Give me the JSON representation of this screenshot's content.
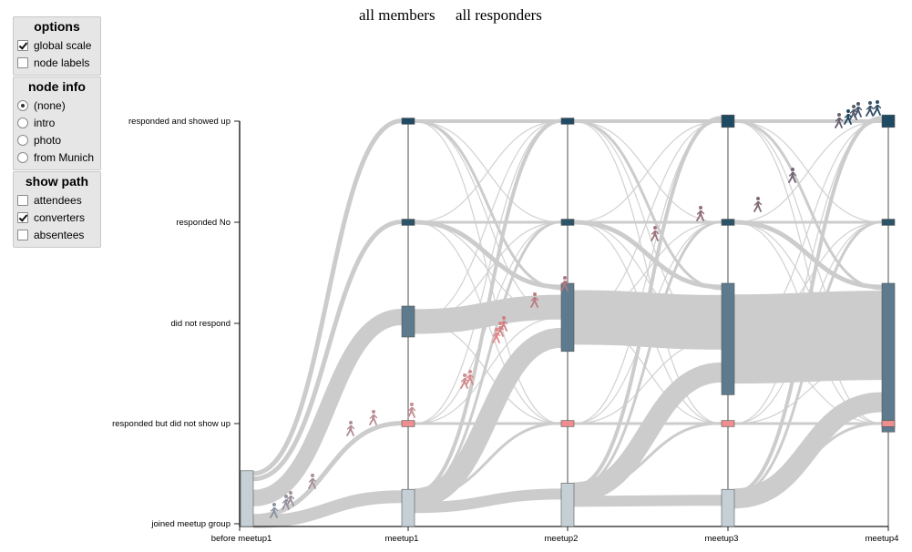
{
  "panels": {
    "options": {
      "title": "options",
      "items": [
        {
          "label": "global scale",
          "checked": true
        },
        {
          "label": "node labels",
          "checked": false
        }
      ]
    },
    "node_info": {
      "title": "node info",
      "items": [
        {
          "label": "(none)",
          "selected": true
        },
        {
          "label": "intro",
          "selected": false
        },
        {
          "label": "photo",
          "selected": false
        },
        {
          "label": "from Munich",
          "selected": false
        }
      ]
    },
    "show_path": {
      "title": "show path",
      "items": [
        {
          "label": "attendees",
          "checked": false
        },
        {
          "label": "converters",
          "checked": true
        },
        {
          "label": "absentees",
          "checked": false
        }
      ]
    }
  },
  "header": {
    "link_all_members": "all members",
    "link_all_responders": "all responders"
  },
  "colors": {
    "showed_up": "#1f4a63",
    "responded_no": "#2c5468",
    "did_not_respond": "#5d7a8e",
    "no_show": "#ee8e8e",
    "joined": "#c5d0d6",
    "link": "#cccccc",
    "walker_start": "#8a93a0",
    "walker_mid": "#e48a8a",
    "walker_end": "#1f4a63"
  },
  "chart_data": {
    "type": "sankey",
    "stages": [
      "before meetup1",
      "meetup1",
      "meetup2",
      "meetup3",
      "meetup4"
    ],
    "states": [
      "responded and showed up",
      "responded No",
      "did not respond",
      "responded but did not show up",
      "joined meetup group"
    ],
    "nodes": [
      {
        "stage": 0,
        "state": "joined meetup group",
        "size": 9
      },
      {
        "stage": 1,
        "state": "responded and showed up",
        "size": 1
      },
      {
        "stage": 1,
        "state": "responded No",
        "size": 1
      },
      {
        "stage": 1,
        "state": "did not respond",
        "size": 5
      },
      {
        "stage": 1,
        "state": "responded but did not show up",
        "size": 1
      },
      {
        "stage": 1,
        "state": "joined meetup group",
        "size": 6
      },
      {
        "stage": 2,
        "state": "responded and showed up",
        "size": 1
      },
      {
        "stage": 2,
        "state": "responded No",
        "size": 1
      },
      {
        "stage": 2,
        "state": "did not respond",
        "size": 11
      },
      {
        "stage": 2,
        "state": "responded but did not show up",
        "size": 1
      },
      {
        "stage": 2,
        "state": "joined meetup group",
        "size": 7
      },
      {
        "stage": 3,
        "state": "responded and showed up",
        "size": 2
      },
      {
        "stage": 3,
        "state": "responded No",
        "size": 1
      },
      {
        "stage": 3,
        "state": "did not respond",
        "size": 18
      },
      {
        "stage": 3,
        "state": "responded but did not show up",
        "size": 1
      },
      {
        "stage": 3,
        "state": "joined meetup group",
        "size": 6
      },
      {
        "stage": 4,
        "state": "responded and showed up",
        "size": 2
      },
      {
        "stage": 4,
        "state": "responded No",
        "size": 1
      },
      {
        "stage": 4,
        "state": "did not respond",
        "size": 24
      },
      {
        "stage": 4,
        "state": "responded but did not show up",
        "size": 1
      }
    ],
    "highlighted_path": "converters",
    "walker_count": 24
  }
}
